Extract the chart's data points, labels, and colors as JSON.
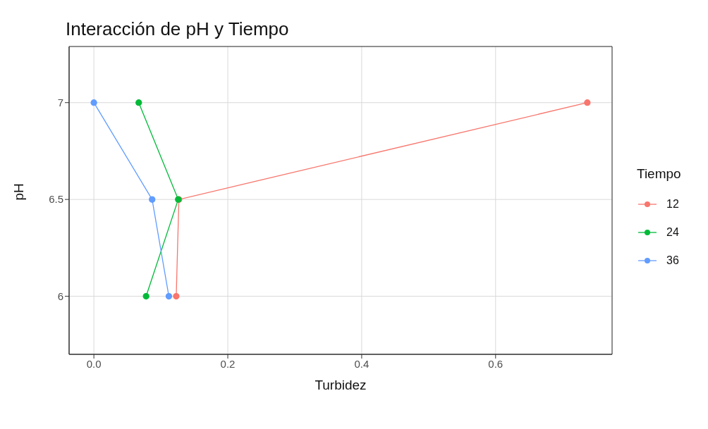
{
  "chart_data": {
    "type": "line",
    "title": "Interacción de pH y Tiempo",
    "xlabel": "Turbidez",
    "ylabel": "pH",
    "legend_title": "Tiempo",
    "legend": "right",
    "grid": true,
    "marker": "circle",
    "line_style": "solid",
    "xlim": [
      -0.037,
      0.774
    ],
    "xticks": [
      {
        "value": 0,
        "label": "0.0"
      },
      0.2,
      0.4,
      0.6
    ],
    "ylim": [
      5.7,
      7.29
    ],
    "yticks": [
      6,
      6.5,
      7
    ],
    "series": [
      {
        "name": "12",
        "color": "#f8766d",
        "x": [
          0.737,
          0.127,
          0.123
        ],
        "values": [
          7,
          6.5,
          6
        ]
      },
      {
        "name": "24",
        "color": "#00ba38",
        "x": [
          0.067,
          0.126,
          0.078
        ],
        "values": [
          7,
          6.5,
          6
        ]
      },
      {
        "name": "36",
        "color": "#619cff",
        "x": [
          0,
          0.087,
          0.112
        ],
        "values": [
          7,
          6.5,
          6
        ]
      }
    ]
  }
}
